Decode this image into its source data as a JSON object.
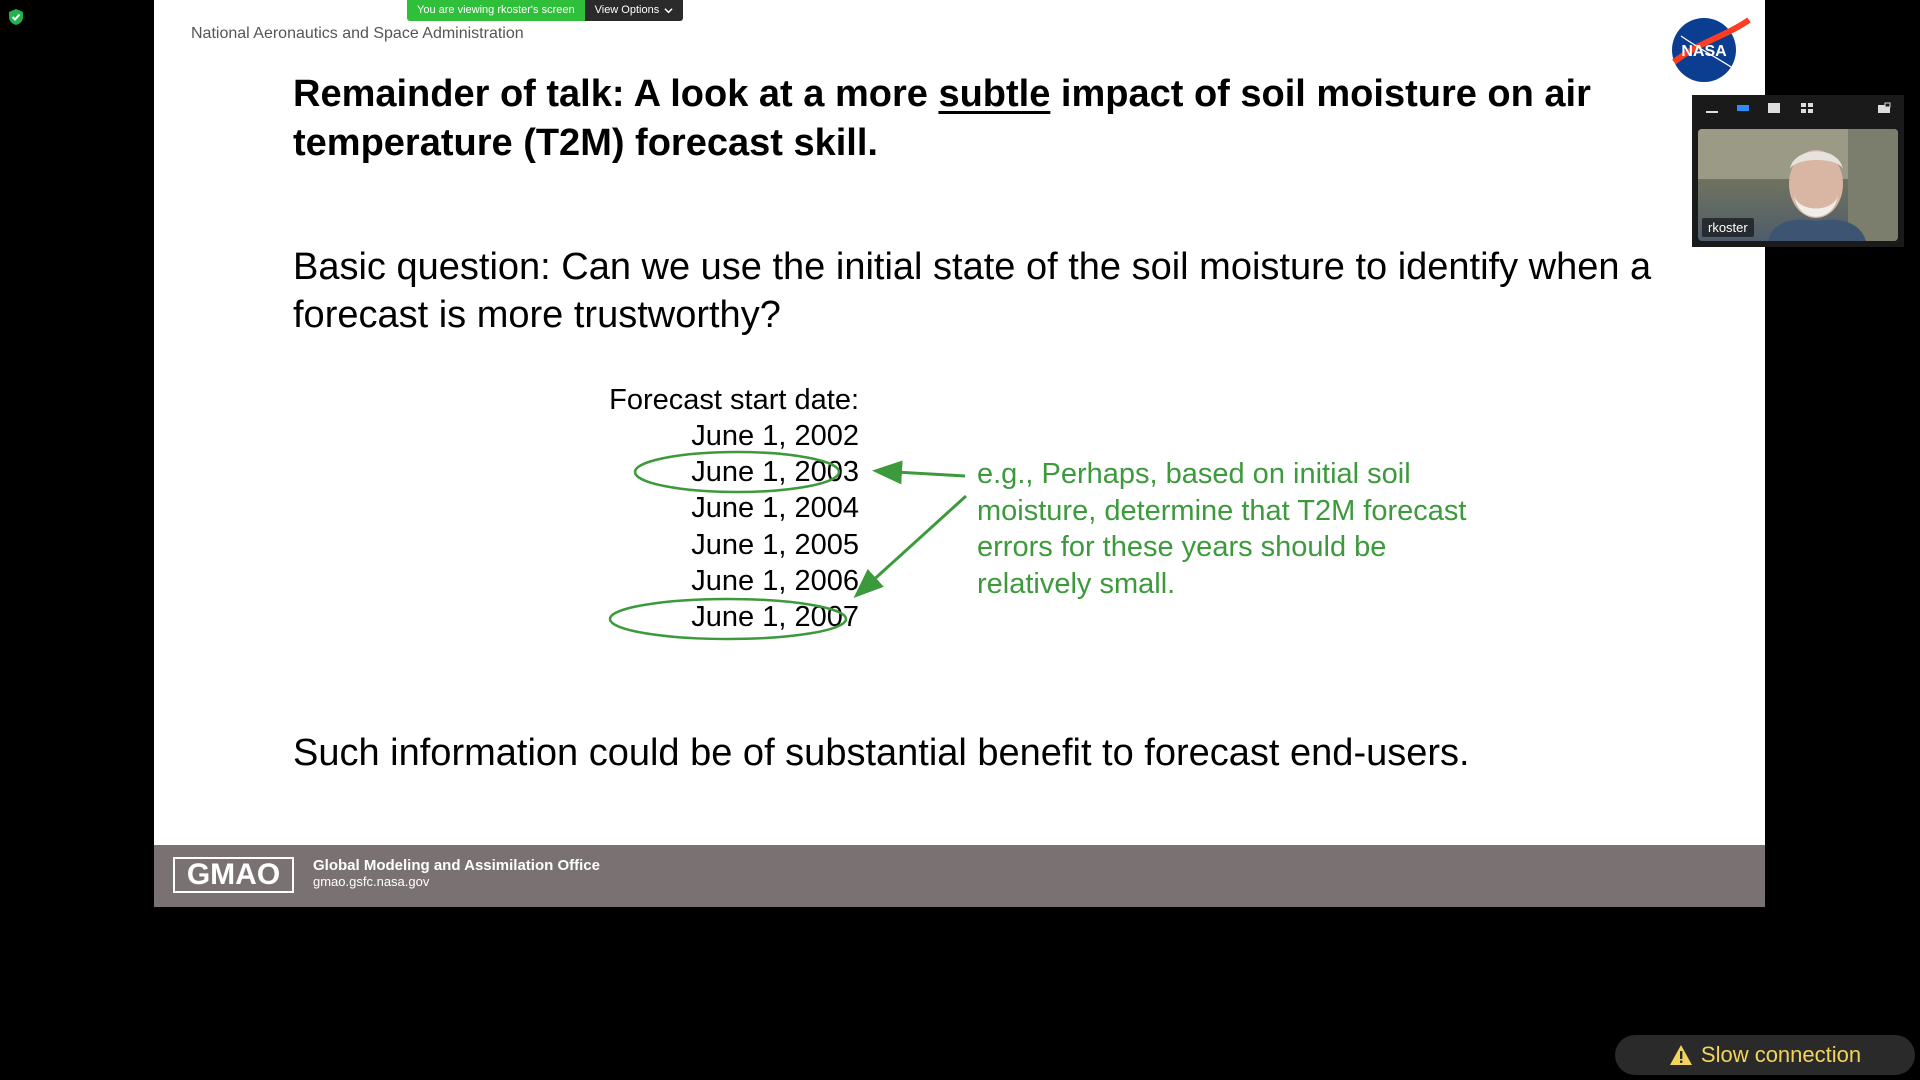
{
  "share_bar": {
    "viewing_label": "You are viewing rkoster's screen",
    "view_options_label": "View Options"
  },
  "slide": {
    "org_name": "National Aeronautics and Space Administration",
    "nasa_logo_text": "NASA",
    "title_part1": "Remainder of talk:  A look at a more ",
    "title_emph": "subtle",
    "title_part2": " impact of soil moisture on air temperature (T2M) forecast skill.",
    "basic_question": "Basic question:  Can we use the initial state of the soil moisture to identify when a forecast is more trustworthy?",
    "dates_header": "Forecast start date:",
    "dates": [
      "June 1, 2002",
      "June 1, 2003",
      "June 1, 2004",
      "June 1, 2005",
      "June 1, 2006",
      "June 1, 2007"
    ],
    "circled_dates": [
      "June 1, 2003",
      "June 1, 2007"
    ],
    "annotation": "e.g., Perhaps, based on initial soil moisture, determine that T2M forecast errors for these years should be relatively small.",
    "benefit": "Such information could be of substantial benefit to forecast end-users.",
    "annotation_color": "#3c9a3c",
    "footer": {
      "logo_text": "GMAO",
      "office_name": "Global Modeling and Assimilation Office",
      "url": "gmao.gsfc.nasa.gov",
      "band_color": "#7a7272"
    }
  },
  "video": {
    "participant_name": "rkoster",
    "controls": [
      "minimize-icon",
      "thumbnail-view-icon",
      "speaker-view-icon",
      "gallery-view-icon",
      "pop-out-icon"
    ]
  },
  "status": {
    "slow_connection": "Slow connection",
    "warning_color": "#f3d35a"
  },
  "security_icon": "shield-check-icon",
  "accent_green": "#2fbf3a"
}
